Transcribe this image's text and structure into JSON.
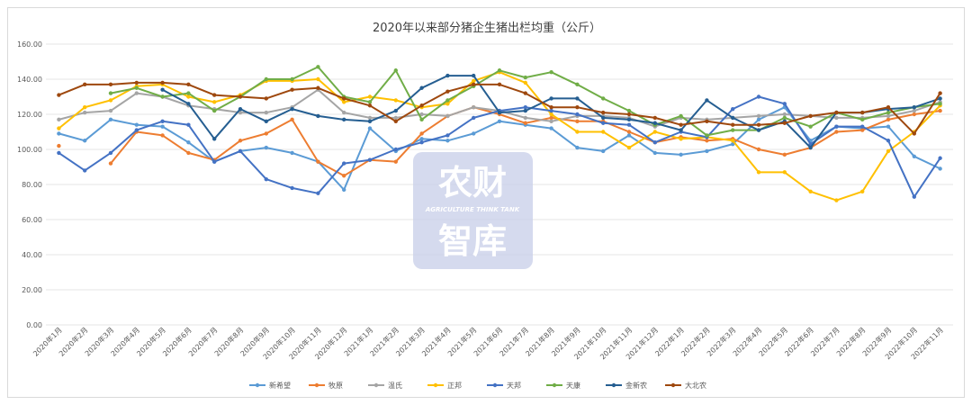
{
  "chart_data": {
    "type": "line",
    "title": "2020年以来部分猪企生猪出栏均重（公斤）",
    "watermark": {
      "line1": "农财",
      "line2": "AGRICULTURE THINK TANK",
      "line3": "智库"
    },
    "ylim": [
      0,
      160
    ],
    "yticks": [
      "0.00",
      "20.00",
      "40.00",
      "60.00",
      "80.00",
      "100.00",
      "120.00",
      "140.00",
      "160.00"
    ],
    "grid": true,
    "legend_position": "bottom",
    "categories": [
      "2020年1月",
      "2020年2月",
      "2020年3月",
      "2020年4月",
      "2020年5月",
      "2020年6月",
      "2020年7月",
      "2020年8月",
      "2020年9月",
      "2020年10月",
      "2020年11月",
      "2020年12月",
      "2021年1月",
      "2021年2月",
      "2021年3月",
      "2021年4月",
      "2021年5月",
      "2021年6月",
      "2021年7月",
      "2021年8月",
      "2021年9月",
      "2021年10月",
      "2021年11月",
      "2021年12月",
      "2022年1月",
      "2022年2月",
      "2022年3月",
      "2022年4月",
      "2022年5月",
      "2022年6月",
      "2022年7月",
      "2022年8月",
      "2022年9月",
      "2022年10月",
      "2022年11月"
    ],
    "series": [
      {
        "name": "新希望",
        "color": "#5b9bd5",
        "values": [
          109,
          105,
          117,
          114,
          113,
          104,
          93,
          99,
          101,
          98,
          93,
          77,
          112,
          99,
          106,
          105,
          109,
          116,
          114,
          112,
          101,
          99,
          108,
          98,
          97,
          99,
          103,
          117,
          124,
          105,
          113,
          112,
          113,
          96,
          89
        ]
      },
      {
        "name": "牧原",
        "color": "#ed7d31",
        "values": [
          102,
          null,
          92,
          110,
          108,
          98,
          94,
          105,
          109,
          117,
          93,
          85,
          94,
          93,
          109,
          119,
          124,
          120,
          115,
          118,
          116,
          116,
          110,
          104,
          107,
          105,
          106,
          100,
          97,
          101,
          110,
          111,
          117,
          120,
          122
        ]
      },
      {
        "name": "温氏",
        "color": "#a5a5a5",
        "values": [
          117,
          121,
          122,
          132,
          130,
          125,
          123,
          121,
          121,
          124,
          134,
          121,
          118,
          118,
          120,
          119,
          124,
          122,
          118,
          116,
          119,
          119,
          118,
          113,
          118,
          117,
          118,
          119,
          120,
          119,
          118,
          118,
          119,
          122,
          127
        ]
      },
      {
        "name": "正邦",
        "color": "#ffc000",
        "values": [
          112,
          124,
          128,
          136,
          137,
          130,
          127,
          131,
          139,
          139,
          140,
          127,
          130,
          128,
          124,
          126,
          139,
          144,
          138,
          120,
          110,
          110,
          101,
          110,
          106,
          107,
          105,
          87,
          87,
          76,
          71,
          76,
          99,
          110,
          125
        ]
      },
      {
        "name": "天邦",
        "color": "#4472c4",
        "values": [
          98,
          88,
          98,
          111,
          116,
          114,
          93,
          99,
          83,
          78,
          75,
          92,
          94,
          100,
          104,
          108,
          118,
          122,
          124,
          122,
          120,
          115,
          114,
          104,
          110,
          107,
          123,
          130,
          126,
          103,
          113,
          113,
          105,
          73,
          95
        ]
      },
      {
        "name": "天康",
        "color": "#70ad47",
        "values": [
          null,
          null,
          132,
          135,
          130,
          132,
          122,
          130,
          140,
          140,
          147,
          130,
          127,
          145,
          117,
          128,
          136,
          145,
          141,
          144,
          137,
          129,
          122,
          114,
          119,
          108,
          111,
          111,
          118,
          113,
          121,
          117,
          121,
          124,
          126
        ]
      },
      {
        "name": "金新农",
        "color": "#255e91",
        "values": [
          null,
          null,
          null,
          null,
          134,
          126,
          106,
          123,
          116,
          123,
          119,
          117,
          116,
          122,
          135,
          142,
          142,
          121,
          122,
          129,
          129,
          118,
          117,
          115,
          111,
          128,
          118,
          111,
          116,
          101,
          121,
          121,
          123,
          124,
          129
        ]
      },
      {
        "name": "大北农",
        "color": "#9e480e",
        "values": [
          131,
          137,
          137,
          138,
          138,
          137,
          131,
          130,
          129,
          134,
          135,
          129,
          125,
          116,
          125,
          133,
          137,
          137,
          132,
          124,
          124,
          121,
          120,
          118,
          114,
          116,
          114,
          114,
          115,
          119,
          121,
          121,
          124,
          109,
          132
        ]
      }
    ]
  }
}
